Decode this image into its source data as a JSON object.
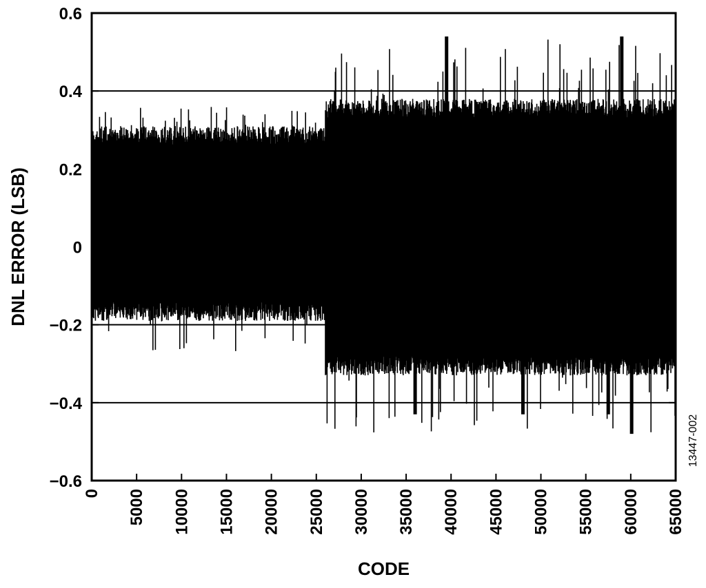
{
  "chart_data": {
    "type": "line",
    "title": "",
    "xlabel": "CODE",
    "ylabel": "DNL ERROR (LSB)",
    "xlim": [
      0,
      65000
    ],
    "ylim": [
      -0.6,
      0.6
    ],
    "x_ticks": [
      0,
      5000,
      10000,
      15000,
      20000,
      25000,
      30000,
      35000,
      40000,
      45000,
      50000,
      55000,
      60000,
      65000
    ],
    "x_tick_labels": [
      "0",
      "5000",
      "10000",
      "15000",
      "20000",
      "25000",
      "30000",
      "35000",
      "40000",
      "45000",
      "50000",
      "55000",
      "60000",
      "65000"
    ],
    "y_ticks": [
      -0.6,
      -0.4,
      -0.2,
      0,
      0.2,
      0.4,
      0.6
    ],
    "y_tick_labels": [
      "−0.6",
      "−0.4",
      "−0.2",
      "0",
      "0.2",
      "0.4",
      "0.6"
    ],
    "gridlines_y": [
      -0.4,
      -0.2,
      0.2,
      0.4
    ],
    "grid": "horizontal",
    "series_color": "#000000",
    "figure_id": "13447-002",
    "series": [
      {
        "envelope_segments": [
          {
            "x_range": [
              0,
              26000
            ],
            "typical_range": [
              -0.19,
              0.31
            ],
            "max": 0.36,
            "min": -0.27
          },
          {
            "x_range": [
              26000,
              65000
            ],
            "typical_range": [
              -0.33,
              0.38
            ],
            "max": 0.54,
            "min": -0.48
          }
        ],
        "max_peaks": [
          {
            "x": 39500,
            "y": 0.54
          },
          {
            "x": 59000,
            "y": 0.54
          }
        ],
        "min_peaks": [
          {
            "x": 60100,
            "y": -0.48
          },
          {
            "x": 36000,
            "y": -0.43
          },
          {
            "x": 48000,
            "y": -0.43
          },
          {
            "x": 57500,
            "y": -0.43
          }
        ]
      }
    ]
  }
}
